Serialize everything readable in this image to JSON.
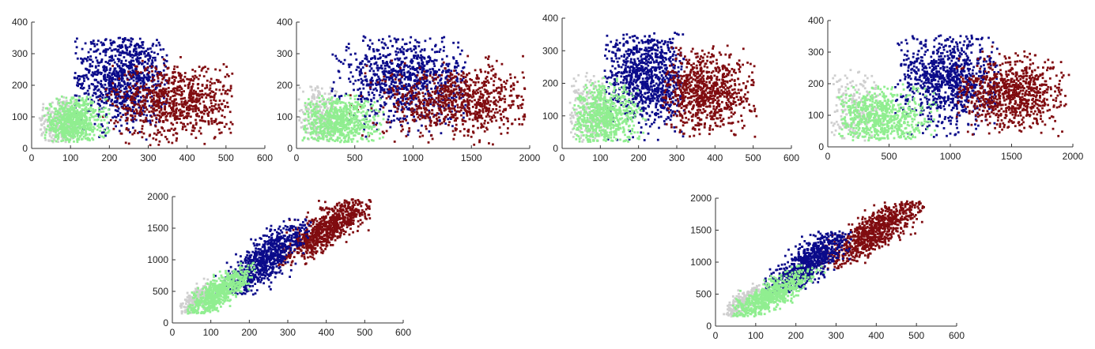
{
  "figure": {
    "colors": {
      "green": "#90ee90",
      "blue": "#0b0b8a",
      "red": "#800c10",
      "gray": "#cfcfcf",
      "axis": "#333333"
    }
  },
  "chart_data": [
    {
      "type": "scatter",
      "xlim": [
        0,
        600
      ],
      "ylim": [
        0,
        400
      ],
      "xticks": [
        "0",
        "100",
        "200",
        "300",
        "400",
        "500",
        "600"
      ],
      "yticks": [
        "0",
        "100",
        "200",
        "300",
        "400"
      ],
      "clusters": [
        {
          "color": "gray",
          "count": 220,
          "xrange": [
            20,
            110
          ],
          "yrange": [
            20,
            180
          ],
          "shape": "blob",
          "center": [
            70,
            80
          ],
          "spread": [
            30,
            45
          ]
        },
        {
          "color": "blue",
          "count": 900,
          "xrange": [
            110,
            350
          ],
          "yrange": [
            20,
            350
          ],
          "shape": "blob",
          "center": [
            235,
            225
          ],
          "spread": [
            65,
            75
          ]
        },
        {
          "color": "red",
          "count": 800,
          "xrange": [
            150,
            520
          ],
          "yrange": [
            10,
            290
          ],
          "shape": "blob",
          "center": [
            370,
            150
          ],
          "spread": [
            80,
            60
          ]
        },
        {
          "color": "green",
          "count": 650,
          "xrange": [
            30,
            200
          ],
          "yrange": [
            20,
            165
          ],
          "shape": "blob",
          "center": [
            110,
            80
          ],
          "spread": [
            40,
            40
          ]
        }
      ]
    },
    {
      "type": "scatter",
      "xlim": [
        0,
        2000
      ],
      "ylim": [
        0,
        400
      ],
      "xticks": [
        "0",
        "500",
        "1000",
        "1500",
        "2000"
      ],
      "yticks": [
        "0",
        "100",
        "200",
        "300",
        "400"
      ],
      "clusters": [
        {
          "color": "gray",
          "count": 220,
          "xrange": [
            20,
            350
          ],
          "yrange": [
            20,
            200
          ],
          "shape": "blob",
          "center": [
            200,
            100
          ],
          "spread": [
            100,
            50
          ]
        },
        {
          "color": "blue",
          "count": 900,
          "xrange": [
            300,
            1450
          ],
          "yrange": [
            30,
            355
          ],
          "shape": "blob",
          "center": [
            950,
            215
          ],
          "spread": [
            280,
            70
          ]
        },
        {
          "color": "red",
          "count": 800,
          "xrange": [
            450,
            1970
          ],
          "yrange": [
            10,
            300
          ],
          "shape": "blob",
          "center": [
            1400,
            150
          ],
          "spread": [
            320,
            55
          ]
        },
        {
          "color": "green",
          "count": 650,
          "xrange": [
            50,
            750
          ],
          "yrange": [
            20,
            170
          ],
          "shape": "blob",
          "center": [
            350,
            85
          ],
          "spread": [
            170,
            40
          ]
        }
      ]
    },
    {
      "type": "scatter",
      "xlim": [
        0,
        600
      ],
      "ylim": [
        0,
        400
      ],
      "xticks": [
        "0",
        "100",
        "200",
        "300",
        "400",
        "500",
        "600"
      ],
      "yticks": [
        "0",
        "100",
        "200",
        "300",
        "400"
      ],
      "clusters": [
        {
          "color": "gray",
          "count": 220,
          "xrange": [
            20,
            120
          ],
          "yrange": [
            20,
            250
          ],
          "shape": "blob",
          "center": [
            70,
            110
          ],
          "spread": [
            30,
            60
          ]
        },
        {
          "color": "blue",
          "count": 900,
          "xrange": [
            110,
            320
          ],
          "yrange": [
            20,
            355
          ],
          "shape": "blob",
          "center": [
            225,
            220
          ],
          "spread": [
            55,
            75
          ]
        },
        {
          "color": "red",
          "count": 800,
          "xrange": [
            260,
            510
          ],
          "yrange": [
            30,
            320
          ],
          "shape": "blob",
          "center": [
            380,
            175
          ],
          "spread": [
            60,
            60
          ]
        },
        {
          "color": "green",
          "count": 650,
          "xrange": [
            30,
            220
          ],
          "yrange": [
            20,
            220
          ],
          "shape": "blob",
          "center": [
            110,
            90
          ],
          "spread": [
            45,
            50
          ]
        }
      ]
    },
    {
      "type": "scatter",
      "xlim": [
        0,
        2000
      ],
      "ylim": [
        0,
        400
      ],
      "xticks": [
        "0",
        "500",
        "1000",
        "1500",
        "2000"
      ],
      "yticks": [
        "0",
        "100",
        "200",
        "300",
        "400"
      ],
      "clusters": [
        {
          "color": "gray",
          "count": 220,
          "xrange": [
            30,
            450
          ],
          "yrange": [
            20,
            260
          ],
          "shape": "blob",
          "center": [
            220,
            130
          ],
          "spread": [
            120,
            60
          ]
        },
        {
          "color": "blue",
          "count": 900,
          "xrange": [
            550,
            1400
          ],
          "yrange": [
            30,
            355
          ],
          "shape": "blob",
          "center": [
            1000,
            215
          ],
          "spread": [
            220,
            75
          ]
        },
        {
          "color": "red",
          "count": 800,
          "xrange": [
            1050,
            1970
          ],
          "yrange": [
            30,
            320
          ],
          "shape": "blob",
          "center": [
            1500,
            170
          ],
          "spread": [
            230,
            55
          ]
        },
        {
          "color": "green",
          "count": 650,
          "xrange": [
            60,
            900
          ],
          "yrange": [
            20,
            200
          ],
          "shape": "blob",
          "center": [
            430,
            90
          ],
          "spread": [
            200,
            45
          ]
        }
      ]
    },
    {
      "type": "scatter",
      "xlim": [
        0,
        600
      ],
      "ylim": [
        0,
        2000
      ],
      "xticks": [
        "0",
        "100",
        "200",
        "300",
        "400",
        "500",
        "600"
      ],
      "yticks": [
        "0",
        "500",
        "1000",
        "1500",
        "2000"
      ],
      "clusters": [
        {
          "color": "gray",
          "count": 200,
          "xrange": [
            20,
            110
          ],
          "yrange": [
            150,
            700
          ],
          "shape": "band",
          "center": [
            60,
            350
          ],
          "spread": [
            25,
            120
          ]
        },
        {
          "color": "red",
          "count": 800,
          "xrange": [
            270,
            520
          ],
          "yrange": [
            900,
            1960
          ],
          "shape": "band",
          "center": [
            400,
            1500
          ],
          "spread": [
            60,
            200
          ]
        },
        {
          "color": "blue",
          "count": 800,
          "xrange": [
            110,
            360
          ],
          "yrange": [
            450,
            1650
          ],
          "shape": "band",
          "center": [
            240,
            1000
          ],
          "spread": [
            55,
            230
          ]
        },
        {
          "color": "green",
          "count": 650,
          "xrange": [
            40,
            220
          ],
          "yrange": [
            150,
            950
          ],
          "shape": "band",
          "center": [
            120,
            480
          ],
          "spread": [
            40,
            140
          ]
        }
      ]
    },
    {
      "type": "scatter",
      "xlim": [
        0,
        600
      ],
      "ylim": [
        0,
        2000
      ],
      "xticks": [
        "0",
        "100",
        "200",
        "300",
        "400",
        "500",
        "600"
      ],
      "yticks": [
        "0",
        "500",
        "1000",
        "1500",
        "2000"
      ],
      "clusters": [
        {
          "color": "gray",
          "count": 200,
          "xrange": [
            20,
            110
          ],
          "yrange": [
            150,
            700
          ],
          "shape": "band",
          "center": [
            60,
            330
          ],
          "spread": [
            25,
            110
          ]
        },
        {
          "color": "red",
          "count": 800,
          "xrange": [
            260,
            520
          ],
          "yrange": [
            900,
            1960
          ],
          "shape": "band",
          "center": [
            400,
            1500
          ],
          "spread": [
            60,
            200
          ]
        },
        {
          "color": "blue",
          "count": 800,
          "xrange": [
            120,
            340
          ],
          "yrange": [
            500,
            1500
          ],
          "shape": "band",
          "center": [
            230,
            980
          ],
          "spread": [
            50,
            200
          ]
        },
        {
          "color": "green",
          "count": 650,
          "xrange": [
            40,
            280
          ],
          "yrange": [
            150,
            950
          ],
          "shape": "band",
          "center": [
            130,
            450
          ],
          "spread": [
            50,
            140
          ]
        }
      ]
    }
  ]
}
